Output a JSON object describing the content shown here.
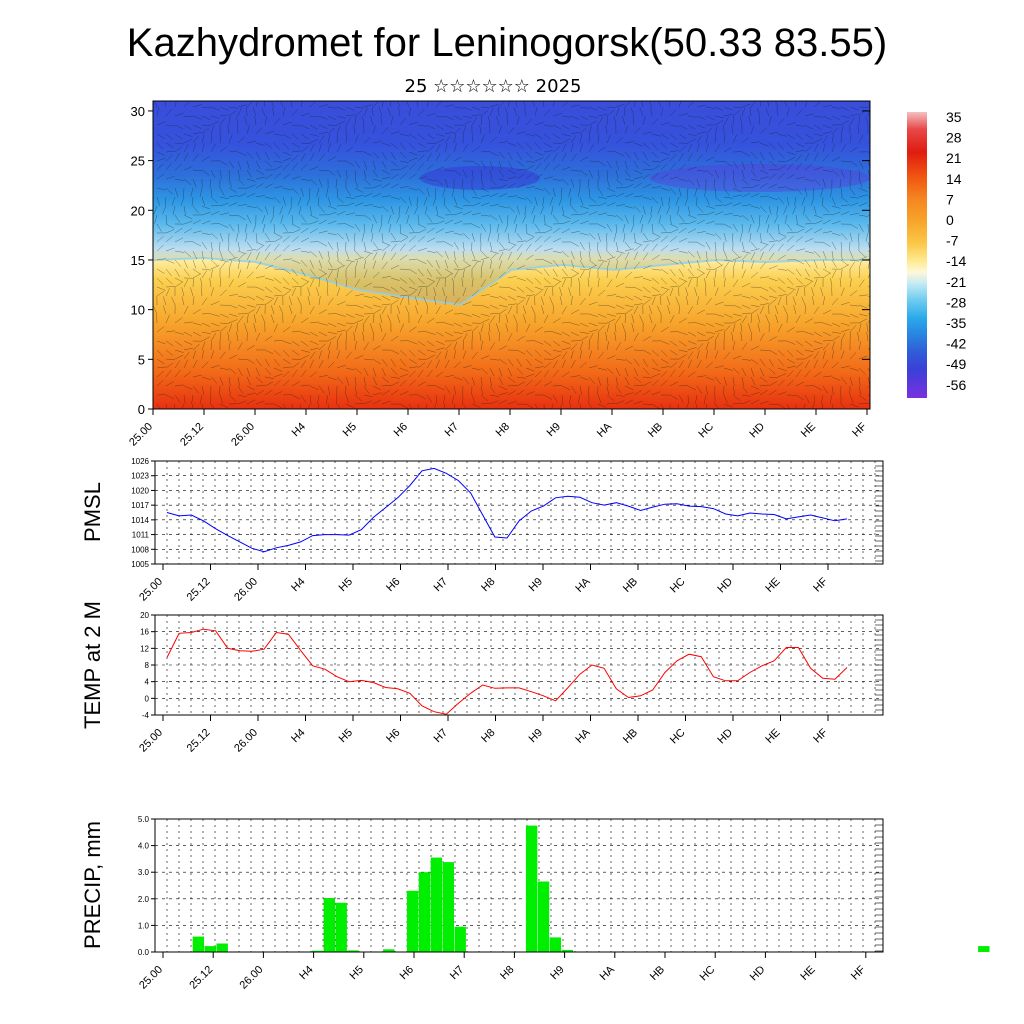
{
  "header": {
    "title": "Kazhydromet for Leninogorsk(50.33 83.55)",
    "subtitle": "25 ☆☆☆☆☆☆ 2025"
  },
  "chart_data": [
    {
      "type": "heatmap",
      "name": "vertical-profile",
      "x_ticks": [
        "25.00",
        "25.12",
        "26.00",
        "H4",
        "H5",
        "H6",
        "H7",
        "H8",
        "H9",
        "HA",
        "HB",
        "HC",
        "HD",
        "HE",
        "HF"
      ],
      "ylim": [
        0,
        31
      ],
      "y_ticks": [
        0,
        5,
        10,
        15,
        20,
        25,
        30
      ],
      "colorbar_labels": [
        "35",
        "28",
        "21",
        "14",
        "7",
        "0",
        "-7",
        "-14",
        "-21",
        "-28",
        "-35",
        "-42",
        "-49",
        "-56"
      ],
      "colorbar_colors": [
        "#f2b8b8",
        "#e84040",
        "#e02010",
        "#ef5010",
        "#f38020",
        "#f6a02a",
        "#fac040",
        "#fde070",
        "#fff4c0",
        "#c8ecf4",
        "#7ed2f0",
        "#30b2ec",
        "#2888e0",
        "#3060d8",
        "#3a40d8",
        "#5028e0",
        "#7030e0"
      ],
      "freezing_level_km": [
        15.0,
        15.2,
        14.8,
        13.5,
        12.0,
        11.2,
        10.5,
        14.0,
        14.5,
        14.0,
        14.5,
        15.0,
        14.8,
        15.0,
        15.0
      ]
    },
    {
      "type": "line",
      "name": "pmsl",
      "ylabel": "PMSL",
      "ylim": [
        1005,
        1026
      ],
      "y_ticks": [
        1005,
        1008,
        1011,
        1014,
        1017,
        1020,
        1023,
        1026
      ],
      "x_ticks": [
        "25.00",
        "25.12",
        "26.00",
        "H4",
        "H5",
        "H6",
        "H7",
        "H8",
        "H9",
        "HA",
        "HB",
        "HC",
        "HD",
        "HE",
        "HF"
      ],
      "color": "#0000ff",
      "values": [
        1015.5,
        1014.8,
        1015.0,
        1013.8,
        1012.2,
        1010.8,
        1009.5,
        1008.2,
        1007.5,
        1008.3,
        1008.8,
        1009.5,
        1010.8,
        1011.0,
        1011.0,
        1010.9,
        1012.0,
        1014.5,
        1016.5,
        1018.5,
        1021.0,
        1024.0,
        1024.5,
        1023.5,
        1022.0,
        1019.5,
        1015.0,
        1010.5,
        1010.3,
        1013.8,
        1015.8,
        1016.8,
        1018.5,
        1018.8,
        1018.6,
        1017.5,
        1017.0,
        1017.5,
        1016.8,
        1015.9,
        1016.6,
        1017.2,
        1017.3,
        1016.8,
        1016.7,
        1016.3,
        1015.2,
        1014.8,
        1015.4,
        1015.2,
        1015.1,
        1014.2,
        1014.6,
        1015.0,
        1014.4,
        1013.8,
        1014.2
      ]
    },
    {
      "type": "line",
      "name": "temp-2m",
      "ylabel": "TEMP at 2 M",
      "ylim": [
        -4,
        20
      ],
      "y_ticks": [
        -4,
        0,
        4,
        8,
        12,
        16,
        20
      ],
      "x_ticks": [
        "25.00",
        "25.12",
        "26.00",
        "H4",
        "H5",
        "H6",
        "H7",
        "H8",
        "H9",
        "HA",
        "HB",
        "HC",
        "HD",
        "HE",
        "HF"
      ],
      "color": "#ff0000",
      "values": [
        9.8,
        15.6,
        15.8,
        16.6,
        16.2,
        12.0,
        11.4,
        11.3,
        11.8,
        15.8,
        15.4,
        11.5,
        7.8,
        7.0,
        5.2,
        4.0,
        4.3,
        3.8,
        2.6,
        2.3,
        1.2,
        -1.8,
        -3.2,
        -3.8,
        -1.2,
        1.2,
        3.2,
        2.4,
        2.5,
        2.5,
        1.6,
        0.6,
        -0.6,
        2.5,
        5.8,
        8.0,
        7.2,
        2.3,
        0.2,
        0.6,
        2.0,
        6.2,
        9.0,
        10.6,
        10.0,
        5.2,
        4.2,
        4.2,
        6.2,
        7.8,
        9.0,
        12.2,
        12.2,
        7.2,
        4.8,
        4.6,
        7.4
      ]
    },
    {
      "type": "bar",
      "name": "precip",
      "ylabel": "PRECIP, mm",
      "ylim": [
        0,
        5
      ],
      "y_ticks": [
        "0.0",
        "1.0",
        "2.0",
        "3.0",
        "4.0",
        "5.0"
      ],
      "x_ticks": [
        "25.00",
        "25.12",
        "26.00",
        "H4",
        "H5",
        "H6",
        "H7",
        "H8",
        "H9",
        "HA",
        "HB",
        "HC",
        "HD",
        "HE",
        "HF"
      ],
      "color": "#00ee00",
      "values": [
        0,
        0,
        0,
        0.58,
        0.22,
        0.32,
        0,
        0,
        0,
        0,
        0,
        0,
        0,
        0.05,
        2.03,
        1.85,
        0.06,
        0,
        0,
        0.1,
        0,
        2.3,
        3.0,
        3.55,
        3.38,
        0.95,
        0.02,
        0,
        0,
        0,
        0.02,
        4.75,
        2.65,
        0.55,
        0.08,
        0,
        0,
        0,
        0,
        0,
        0,
        0,
        0,
        0,
        0,
        0,
        0,
        0,
        0,
        0,
        0,
        0,
        0,
        0,
        0,
        0,
        0,
        0,
        0,
        0,
        0,
        0,
        0,
        0,
        0,
        0,
        0,
        0,
        0,
        0.22,
        0,
        0,
        0,
        0,
        0,
        0,
        0,
        0
      ]
    }
  ]
}
